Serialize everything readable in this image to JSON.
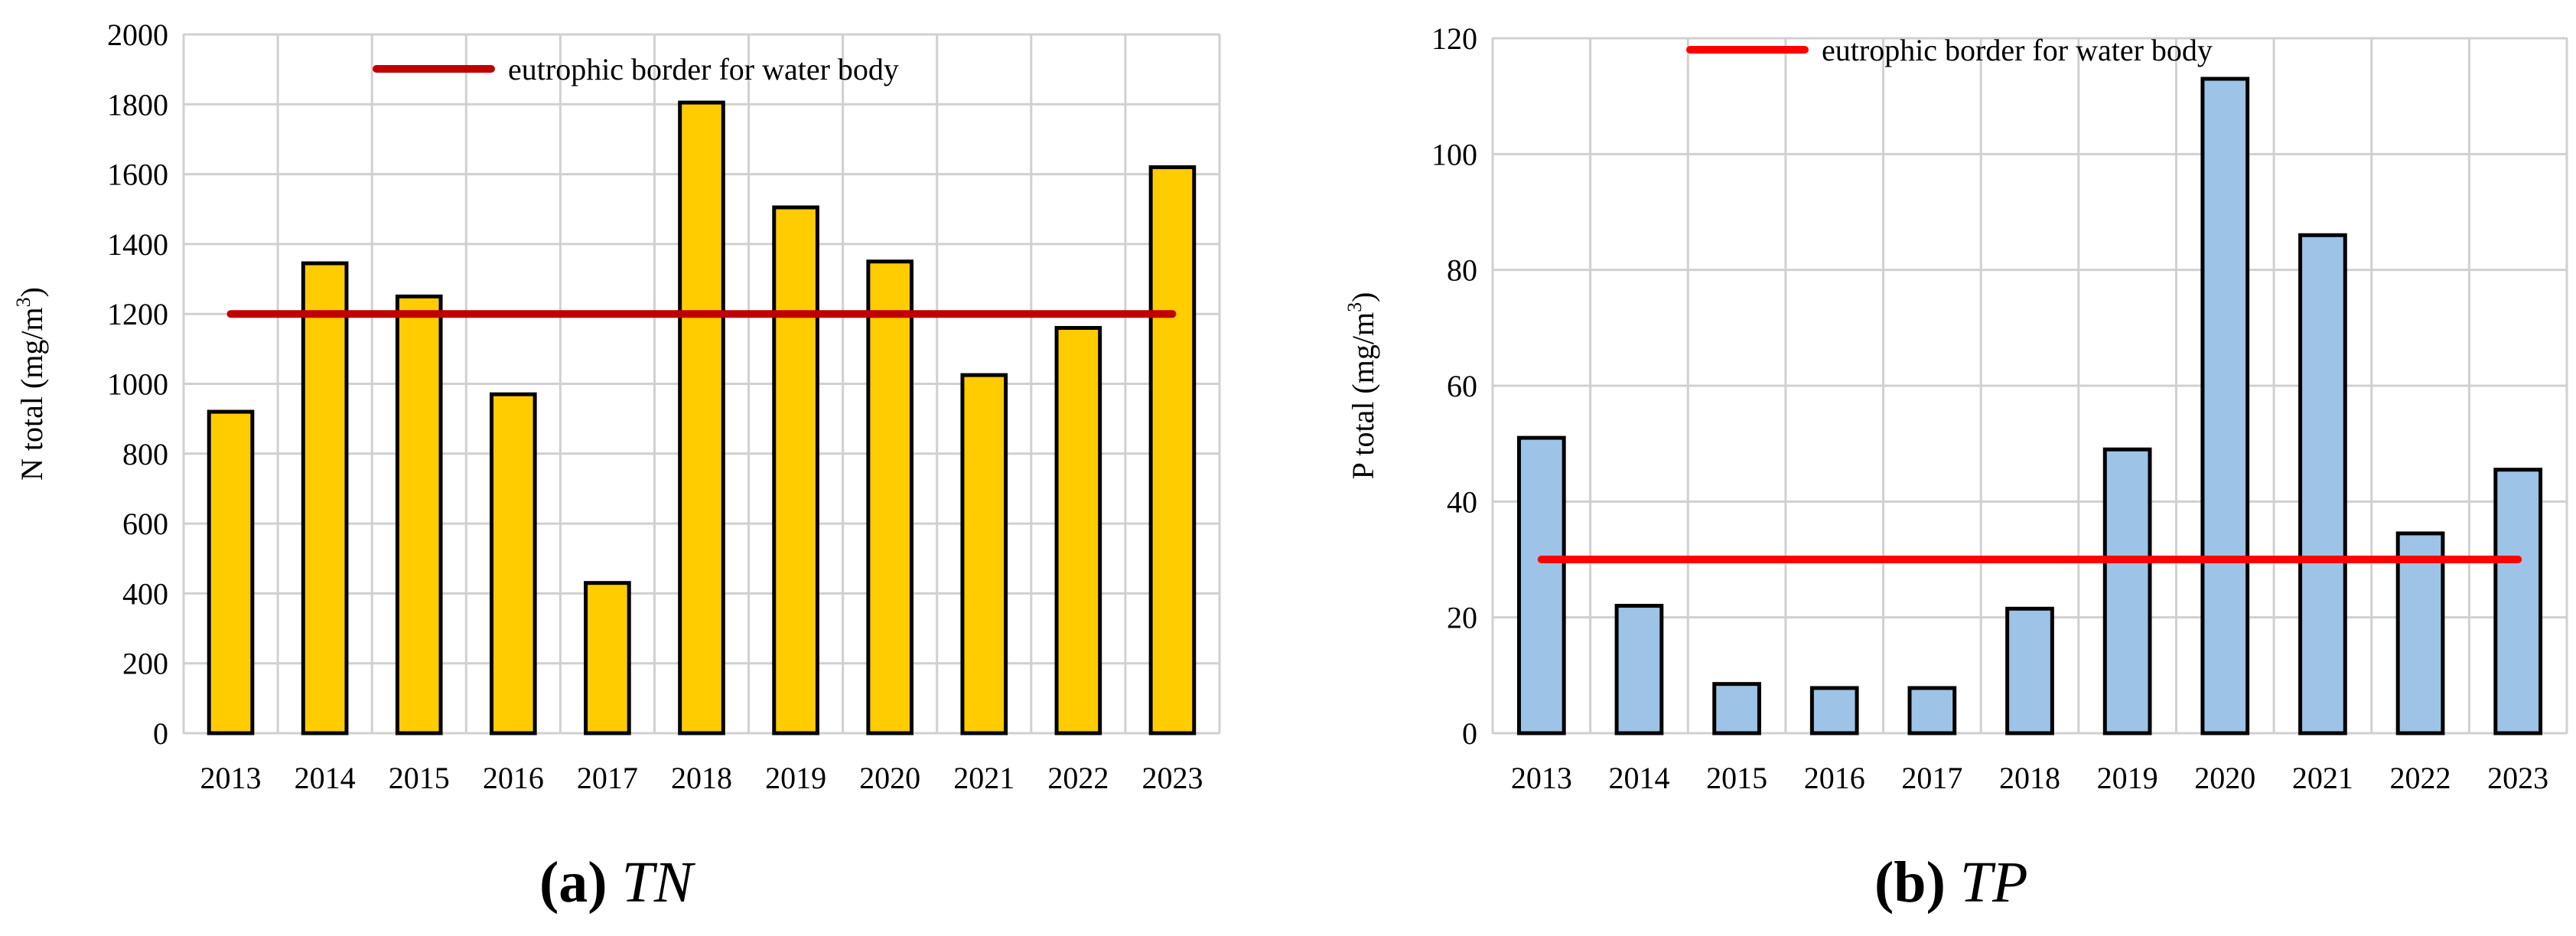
{
  "chart_data": [
    {
      "type": "bar",
      "panel_label": "(a)",
      "panel_name": "TN",
      "categories": [
        "2013",
        "2014",
        "2015",
        "2016",
        "2017",
        "2018",
        "2019",
        "2020",
        "2021",
        "2022",
        "2023"
      ],
      "values": [
        920,
        1345,
        1250,
        970,
        430,
        1805,
        1505,
        1350,
        1025,
        1160,
        1620
      ],
      "ylabel": "N total (mg/m",
      "ylabel_sup": "3",
      "ylabel_end": ")",
      "ylim": [
        0,
        2000
      ],
      "yticks": [
        0,
        200,
        400,
        600,
        800,
        1000,
        1200,
        1400,
        1600,
        1800,
        2000
      ],
      "threshold": 1200,
      "legend": "eutrophic border for water body",
      "bar_color": "#FFCC00",
      "line_color": "#C00000",
      "grid": true
    },
    {
      "type": "bar",
      "panel_label": "(b)",
      "panel_name": "TP",
      "categories": [
        "2013",
        "2014",
        "2015",
        "2016",
        "2017",
        "2018",
        "2019",
        "2020",
        "2021",
        "2022",
        "2023"
      ],
      "values": [
        51,
        22,
        8.5,
        7.8,
        7.8,
        21.5,
        49,
        113,
        86,
        34.5,
        45.5
      ],
      "ylabel": "P total (mg/m",
      "ylabel_sup": "3",
      "ylabel_end": ")",
      "ylim": [
        0,
        120
      ],
      "yticks": [
        0,
        20,
        40,
        60,
        80,
        100,
        120
      ],
      "threshold": 30,
      "legend": "eutrophic border for water body",
      "bar_color": "#9DC3E6",
      "line_color": "#FF0000",
      "grid": true
    }
  ]
}
